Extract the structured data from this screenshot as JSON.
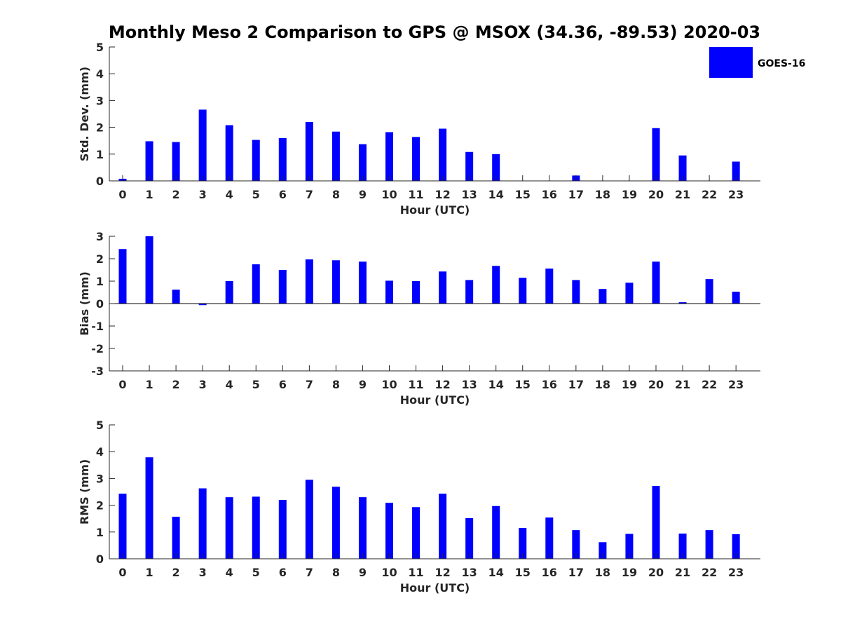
{
  "figure": {
    "title": "Monthly Meso 2 Comparison to GPS @ MSOX (34.36, -89.53) 2020-03",
    "bar_color": "#0000ff",
    "legend": {
      "label": "GOES-16",
      "placement": "top-right"
    }
  },
  "chart_data": [
    {
      "type": "bar",
      "name": "std-dev",
      "xlabel": "Hour (UTC)",
      "ylabel": "Std. Dev. (mm)",
      "ylim": [
        0,
        5
      ],
      "yticks": [
        0,
        1,
        2,
        3,
        4,
        5
      ],
      "categories": [
        "0",
        "1",
        "2",
        "3",
        "4",
        "5",
        "6",
        "7",
        "8",
        "9",
        "10",
        "11",
        "12",
        "13",
        "14",
        "15",
        "16",
        "17",
        "18",
        "19",
        "20",
        "21",
        "22",
        "23"
      ],
      "series": [
        {
          "values": [
            0.08,
            1.48,
            1.45,
            2.66,
            2.08,
            1.53,
            1.6,
            2.2,
            1.84,
            1.37,
            1.82,
            1.64,
            1.95,
            1.08,
            1.0,
            0,
            0,
            0.2,
            0,
            0,
            1.97,
            0.95,
            0,
            0.72
          ]
        }
      ],
      "grid": false
    },
    {
      "type": "bar",
      "name": "bias",
      "xlabel": "Hour (UTC)",
      "ylabel": "Bias (mm)",
      "ylim": [
        -3,
        3
      ],
      "yticks": [
        -3,
        -2,
        -1,
        0,
        1,
        2,
        3
      ],
      "categories": [
        "0",
        "1",
        "2",
        "3",
        "4",
        "5",
        "6",
        "7",
        "8",
        "9",
        "10",
        "11",
        "12",
        "13",
        "14",
        "15",
        "16",
        "17",
        "18",
        "19",
        "20",
        "21",
        "22",
        "23"
      ],
      "series": [
        {
          "values": [
            2.43,
            3.0,
            0.62,
            -0.07,
            1.0,
            1.75,
            1.5,
            1.97,
            1.93,
            1.87,
            1.02,
            1.0,
            1.43,
            1.05,
            1.68,
            1.15,
            1.56,
            1.05,
            0.65,
            0.93,
            1.87,
            0.06,
            1.09,
            0.53
          ]
        }
      ],
      "grid": false
    },
    {
      "type": "bar",
      "name": "rms",
      "xlabel": "Hour (UTC)",
      "ylabel": "RMS (mm)",
      "ylim": [
        0,
        5
      ],
      "yticks": [
        0,
        1,
        2,
        3,
        4,
        5
      ],
      "categories": [
        "0",
        "1",
        "2",
        "3",
        "4",
        "5",
        "6",
        "7",
        "8",
        "9",
        "10",
        "11",
        "12",
        "13",
        "14",
        "15",
        "16",
        "17",
        "18",
        "19",
        "20",
        "21",
        "22",
        "23"
      ],
      "series": [
        {
          "values": [
            2.43,
            3.79,
            1.57,
            2.63,
            2.3,
            2.32,
            2.2,
            2.95,
            2.69,
            2.3,
            2.09,
            1.93,
            2.43,
            1.52,
            1.97,
            1.15,
            1.54,
            1.07,
            0.62,
            0.93,
            2.72,
            0.94,
            1.07,
            0.92
          ]
        }
      ],
      "grid": false
    }
  ]
}
